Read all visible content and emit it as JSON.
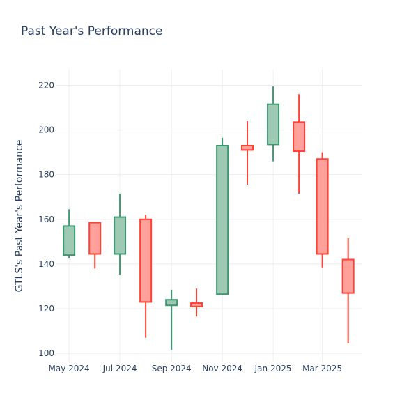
{
  "chart_data": {
    "type": "candlestick",
    "title": "Past Year's Performance",
    "xlabel": "",
    "ylabel": "GTLS's Past Year's Performance",
    "ylim": [
      96,
      227
    ],
    "y_ticks": [
      100,
      120,
      140,
      160,
      180,
      200,
      220
    ],
    "x_ticks": [
      "May 2024",
      "Jul 2024",
      "Sep 2024",
      "Nov 2024",
      "Jan 2025",
      "Mar 2025"
    ],
    "grid": true,
    "colors": {
      "increasing": "#3d9970",
      "increasing_fill": "#9ecab5",
      "decreasing": "#ff4136",
      "decreasing_fill": "#ffa09b"
    },
    "candles": [
      {
        "x": "2024-05-01",
        "open": 144,
        "high": 164.5,
        "low": 142.5,
        "close": 157
      },
      {
        "x": "2024-06-01",
        "open": 158.5,
        "high": 158.5,
        "low": 138,
        "close": 144.5
      },
      {
        "x": "2024-07-01",
        "open": 144.5,
        "high": 171.5,
        "low": 135,
        "close": 161
      },
      {
        "x": "2024-08-01",
        "open": 160,
        "high": 162,
        "low": 107,
        "close": 123
      },
      {
        "x": "2024-09-01",
        "open": 121.5,
        "high": 128.5,
        "low": 101.5,
        "close": 124
      },
      {
        "x": "2024-10-01",
        "open": 122.5,
        "high": 129,
        "low": 116.5,
        "close": 121
      },
      {
        "x": "2024-11-01",
        "open": 126.5,
        "high": 196.5,
        "low": 126,
        "close": 193
      },
      {
        "x": "2024-12-01",
        "open": 193,
        "high": 204,
        "low": 175.5,
        "close": 191
      },
      {
        "x": "2025-01-01",
        "open": 193.5,
        "high": 219.5,
        "low": 186,
        "close": 211.5
      },
      {
        "x": "2025-02-01",
        "open": 203.5,
        "high": 216,
        "low": 171.5,
        "close": 190.5
      },
      {
        "x": "2025-03-01",
        "open": 187,
        "high": 190,
        "low": 138.5,
        "close": 144.5
      },
      {
        "x": "2025-04-01",
        "open": 142,
        "high": 151.5,
        "low": 104.5,
        "close": 127
      }
    ]
  }
}
